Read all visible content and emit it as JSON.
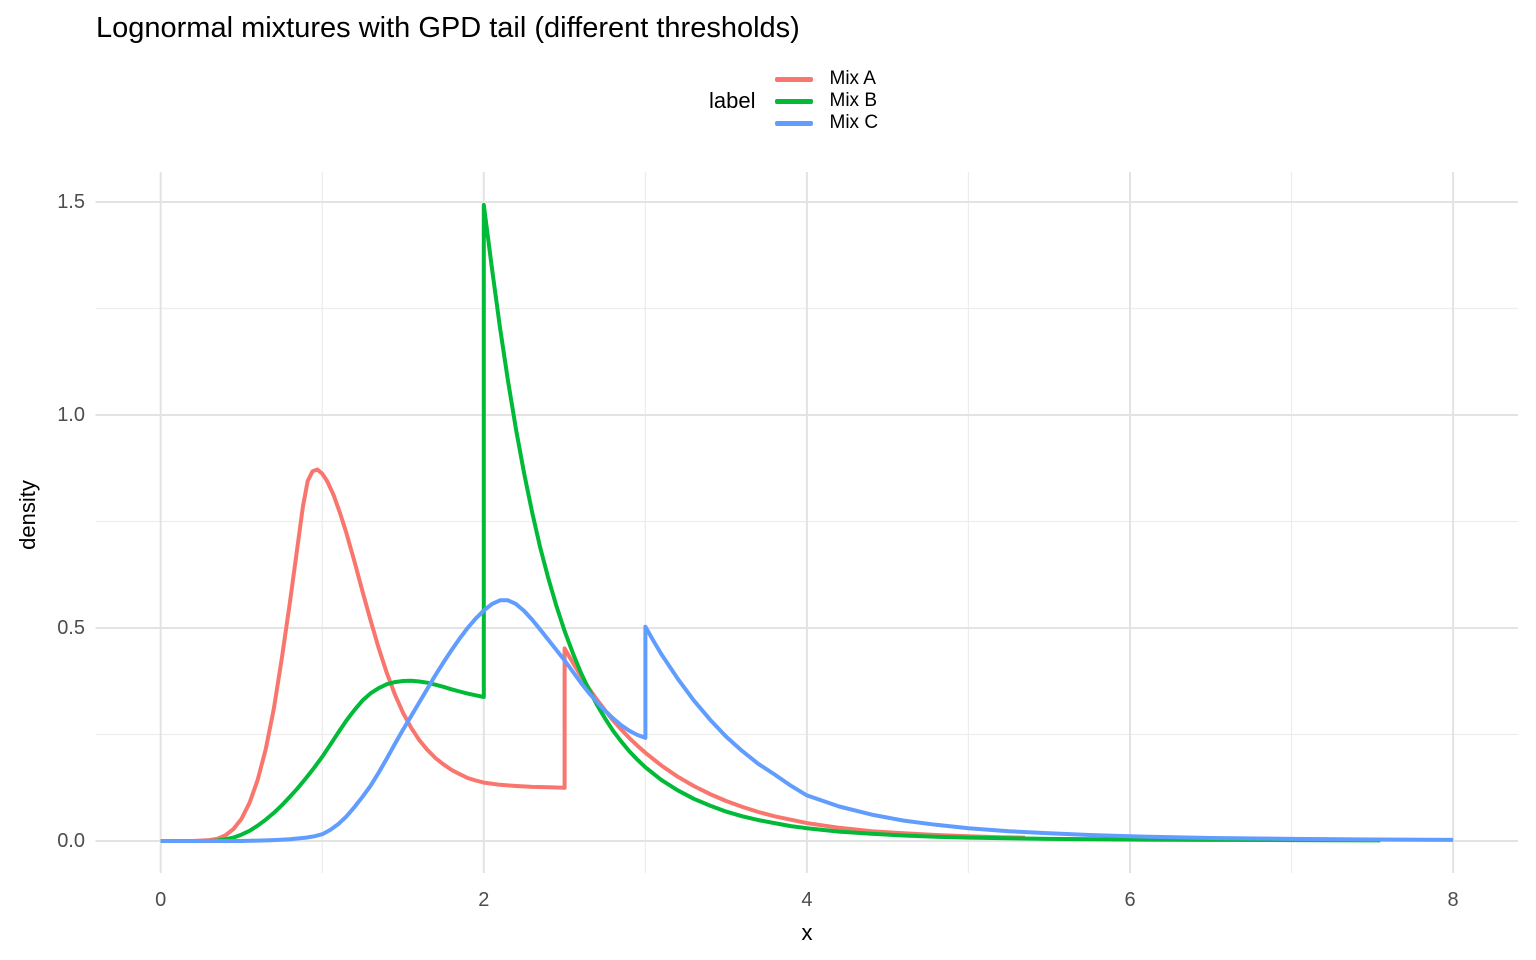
{
  "chart_data": {
    "type": "line",
    "title": "Lognormal mixtures with GPD tail (different thresholds)",
    "xlabel": "x",
    "ylabel": "density",
    "legend_title": "label",
    "legend_position": "top-center",
    "grid": true,
    "background": "#FFFFFF",
    "grid_major_color": "#E3E3E3",
    "grid_minor_color": "#EDEDED",
    "tick_label_color": "#4D4D4D",
    "xlim": [
      0,
      8.4
    ],
    "ylim": [
      0,
      1.57
    ],
    "x_major_ticks": [
      0,
      2,
      4,
      6,
      8
    ],
    "x_tick_labels": [
      "0",
      "2",
      "4",
      "6",
      "8"
    ],
    "x_minor_ticks": [
      1,
      3,
      5,
      7
    ],
    "y_major_ticks": [
      0,
      0.5,
      1.0,
      1.5
    ],
    "y_tick_labels": [
      "0.0",
      "0.5",
      "1.0",
      "1.5"
    ],
    "y_minor_ticks": [
      0.25,
      0.75,
      1.25
    ],
    "series": [
      {
        "name": "Mix A",
        "color": "#F8766D",
        "threshold": 2.5,
        "peak": {
          "x": 0.95,
          "y": 0.87
        },
        "points": [
          [
            0,
            0
          ],
          [
            0.2,
            0
          ],
          [
            0.3,
            0.002
          ],
          [
            0.35,
            0.005
          ],
          [
            0.4,
            0.013
          ],
          [
            0.45,
            0.028
          ],
          [
            0.5,
            0.052
          ],
          [
            0.55,
            0.09
          ],
          [
            0.6,
            0.143
          ],
          [
            0.65,
            0.215
          ],
          [
            0.7,
            0.31
          ],
          [
            0.75,
            0.43
          ],
          [
            0.8,
            0.56
          ],
          [
            0.85,
            0.7
          ],
          [
            0.88,
            0.785
          ],
          [
            0.91,
            0.845
          ],
          [
            0.94,
            0.868
          ],
          [
            0.97,
            0.872
          ],
          [
            1,
            0.862
          ],
          [
            1.03,
            0.845
          ],
          [
            1.07,
            0.812
          ],
          [
            1.11,
            0.77
          ],
          [
            1.15,
            0.722
          ],
          [
            1.2,
            0.655
          ],
          [
            1.25,
            0.585
          ],
          [
            1.3,
            0.517
          ],
          [
            1.35,
            0.452
          ],
          [
            1.4,
            0.394
          ],
          [
            1.45,
            0.344
          ],
          [
            1.5,
            0.301
          ],
          [
            1.55,
            0.266
          ],
          [
            1.6,
            0.237
          ],
          [
            1.65,
            0.214
          ],
          [
            1.7,
            0.195
          ],
          [
            1.75,
            0.18
          ],
          [
            1.8,
            0.167
          ],
          [
            1.85,
            0.157
          ],
          [
            1.9,
            0.148
          ],
          [
            1.95,
            0.142
          ],
          [
            2,
            0.137
          ],
          [
            2.1,
            0.132
          ],
          [
            2.2,
            0.129
          ],
          [
            2.3,
            0.127
          ],
          [
            2.4,
            0.126
          ],
          [
            2.5,
            0.125
          ],
          [
            2.5,
            0.452
          ],
          [
            2.55,
            0.419
          ],
          [
            2.6,
            0.388
          ],
          [
            2.65,
            0.359
          ],
          [
            2.7,
            0.332
          ],
          [
            2.75,
            0.307
          ],
          [
            2.8,
            0.283
          ],
          [
            2.85,
            0.262
          ],
          [
            2.9,
            0.242
          ],
          [
            2.95,
            0.224
          ],
          [
            3,
            0.207
          ],
          [
            3.1,
            0.177
          ],
          [
            3.2,
            0.151
          ],
          [
            3.3,
            0.129
          ],
          [
            3.4,
            0.11
          ],
          [
            3.5,
            0.094
          ],
          [
            3.6,
            0.08
          ],
          [
            3.7,
            0.068
          ],
          [
            3.8,
            0.058
          ],
          [
            3.9,
            0.05
          ],
          [
            4,
            0.042
          ],
          [
            4.2,
            0.031
          ],
          [
            4.4,
            0.023
          ],
          [
            4.6,
            0.018
          ],
          [
            4.8,
            0.014
          ],
          [
            5,
            0.011
          ],
          [
            5.2,
            0.009
          ],
          [
            5.35,
            0.008
          ]
        ]
      },
      {
        "name": "Mix B",
        "color": "#00BA38",
        "threshold": 2.0,
        "peak": {
          "x": 2.0,
          "y": 1.49
        },
        "points": [
          [
            0,
            0
          ],
          [
            0.3,
            0
          ],
          [
            0.35,
            0.001
          ],
          [
            0.4,
            0.004
          ],
          [
            0.45,
            0.008
          ],
          [
            0.5,
            0.015
          ],
          [
            0.55,
            0.024
          ],
          [
            0.6,
            0.036
          ],
          [
            0.65,
            0.05
          ],
          [
            0.7,
            0.066
          ],
          [
            0.75,
            0.084
          ],
          [
            0.8,
            0.104
          ],
          [
            0.85,
            0.125
          ],
          [
            0.9,
            0.148
          ],
          [
            0.95,
            0.172
          ],
          [
            1,
            0.198
          ],
          [
            1.05,
            0.226
          ],
          [
            1.1,
            0.255
          ],
          [
            1.15,
            0.283
          ],
          [
            1.2,
            0.308
          ],
          [
            1.25,
            0.33
          ],
          [
            1.3,
            0.347
          ],
          [
            1.35,
            0.359
          ],
          [
            1.4,
            0.368
          ],
          [
            1.45,
            0.373
          ],
          [
            1.5,
            0.3755
          ],
          [
            1.55,
            0.376
          ],
          [
            1.6,
            0.3745
          ],
          [
            1.65,
            0.3715
          ],
          [
            1.7,
            0.367
          ],
          [
            1.75,
            0.362
          ],
          [
            1.8,
            0.356
          ],
          [
            1.85,
            0.351
          ],
          [
            1.9,
            0.346
          ],
          [
            1.95,
            0.342
          ],
          [
            2,
            0.338
          ],
          [
            2,
            1.493
          ],
          [
            2.05,
            1.345
          ],
          [
            2.1,
            1.205
          ],
          [
            2.15,
            1.08
          ],
          [
            2.2,
            0.965
          ],
          [
            2.25,
            0.862
          ],
          [
            2.3,
            0.77
          ],
          [
            2.35,
            0.688
          ],
          [
            2.4,
            0.616
          ],
          [
            2.45,
            0.551
          ],
          [
            2.5,
            0.493
          ],
          [
            2.55,
            0.442
          ],
          [
            2.6,
            0.396
          ],
          [
            2.65,
            0.356
          ],
          [
            2.7,
            0.32
          ],
          [
            2.75,
            0.288
          ],
          [
            2.8,
            0.259
          ],
          [
            2.85,
            0.234
          ],
          [
            2.9,
            0.211
          ],
          [
            2.95,
            0.191
          ],
          [
            3,
            0.173
          ],
          [
            3.1,
            0.143
          ],
          [
            3.2,
            0.119
          ],
          [
            3.3,
            0.099
          ],
          [
            3.4,
            0.083
          ],
          [
            3.5,
            0.069
          ],
          [
            3.6,
            0.058
          ],
          [
            3.7,
            0.049
          ],
          [
            3.8,
            0.042
          ],
          [
            3.9,
            0.035
          ],
          [
            4,
            0.03
          ],
          [
            4.2,
            0.022
          ],
          [
            4.4,
            0.017
          ],
          [
            4.6,
            0.013
          ],
          [
            4.8,
            0.01
          ],
          [
            5,
            0.008
          ],
          [
            5.5,
            0.005
          ],
          [
            6,
            0.0035
          ],
          [
            6.5,
            0.0025
          ],
          [
            7,
            0.002
          ],
          [
            7.55,
            0.0015
          ]
        ]
      },
      {
        "name": "Mix C",
        "color": "#619CFF",
        "threshold": 3.0,
        "peak": {
          "x": 2.1,
          "y": 0.565
        },
        "points": [
          [
            0,
            0
          ],
          [
            0.5,
            0
          ],
          [
            0.6,
            0.001
          ],
          [
            0.7,
            0.002
          ],
          [
            0.8,
            0.004
          ],
          [
            0.9,
            0.008
          ],
          [
            0.95,
            0.011
          ],
          [
            1,
            0.016
          ],
          [
            1.05,
            0.026
          ],
          [
            1.1,
            0.04
          ],
          [
            1.15,
            0.058
          ],
          [
            1.2,
            0.08
          ],
          [
            1.25,
            0.104
          ],
          [
            1.3,
            0.13
          ],
          [
            1.35,
            0.161
          ],
          [
            1.4,
            0.194
          ],
          [
            1.45,
            0.228
          ],
          [
            1.5,
            0.261
          ],
          [
            1.55,
            0.293
          ],
          [
            1.6,
            0.325
          ],
          [
            1.65,
            0.357
          ],
          [
            1.7,
            0.389
          ],
          [
            1.75,
            0.419
          ],
          [
            1.8,
            0.448
          ],
          [
            1.85,
            0.475
          ],
          [
            1.9,
            0.5
          ],
          [
            1.95,
            0.522
          ],
          [
            2,
            0.541
          ],
          [
            2.05,
            0.556
          ],
          [
            2.1,
            0.565
          ],
          [
            2.15,
            0.565
          ],
          [
            2.2,
            0.556
          ],
          [
            2.25,
            0.54
          ],
          [
            2.3,
            0.519
          ],
          [
            2.35,
            0.496
          ],
          [
            2.4,
            0.472
          ],
          [
            2.45,
            0.448
          ],
          [
            2.5,
            0.424
          ],
          [
            2.55,
            0.398
          ],
          [
            2.6,
            0.372
          ],
          [
            2.65,
            0.348
          ],
          [
            2.7,
            0.326
          ],
          [
            2.75,
            0.306
          ],
          [
            2.8,
            0.288
          ],
          [
            2.85,
            0.272
          ],
          [
            2.9,
            0.259
          ],
          [
            2.95,
            0.249
          ],
          [
            3,
            0.242
          ],
          [
            3,
            0.503
          ],
          [
            3.05,
            0.47
          ],
          [
            3.1,
            0.438
          ],
          [
            3.2,
            0.381
          ],
          [
            3.3,
            0.33
          ],
          [
            3.4,
            0.285
          ],
          [
            3.5,
            0.245
          ],
          [
            3.6,
            0.211
          ],
          [
            3.7,
            0.181
          ],
          [
            3.8,
            0.156
          ],
          [
            3.9,
            0.13
          ],
          [
            4,
            0.107
          ],
          [
            4.2,
            0.081
          ],
          [
            4.4,
            0.062
          ],
          [
            4.6,
            0.048
          ],
          [
            4.8,
            0.038
          ],
          [
            5,
            0.03
          ],
          [
            5.25,
            0.023
          ],
          [
            5.5,
            0.018
          ],
          [
            5.75,
            0.014
          ],
          [
            6,
            0.011
          ],
          [
            6.5,
            0.007
          ],
          [
            7,
            0.005
          ],
          [
            7.5,
            0.0035
          ],
          [
            8,
            0.0025
          ]
        ]
      }
    ]
  }
}
